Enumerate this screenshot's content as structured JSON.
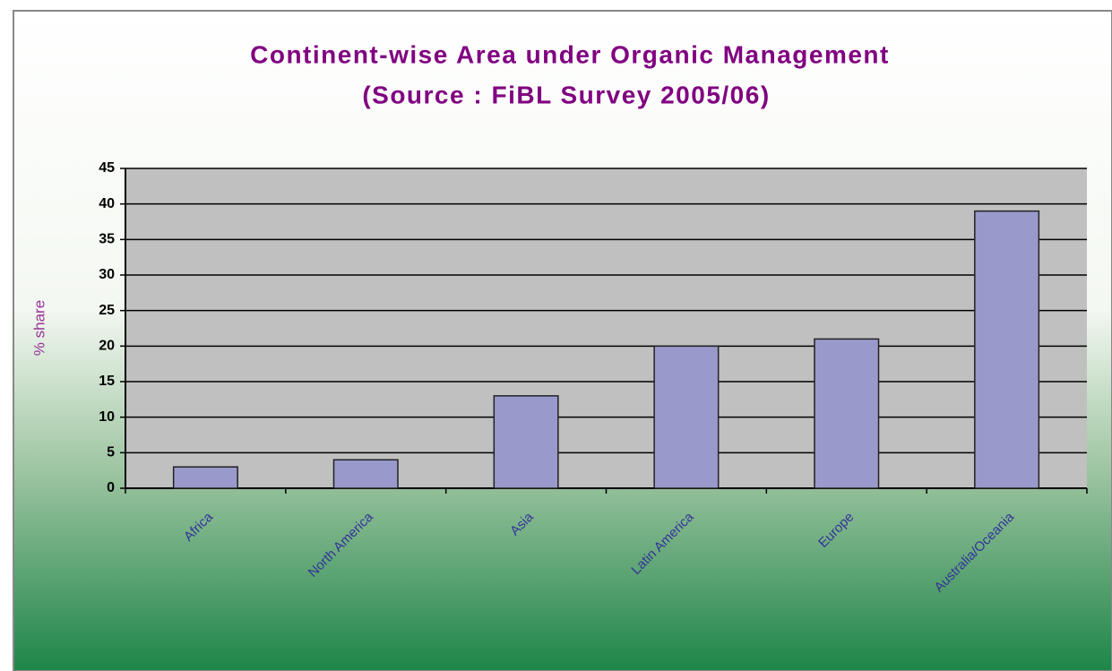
{
  "chart_data": {
    "type": "bar",
    "title": "Continent-wise Area under Organic Management",
    "subtitle": "(Source : FiBL Survey 2005/06)",
    "y_label": "% share",
    "categories": [
      "Africa",
      "North America",
      "Asia",
      "Latin America",
      "Europe",
      "Australia/Oceania"
    ],
    "values": [
      3,
      4,
      13,
      20,
      21,
      39
    ],
    "color": "#9999cc",
    "ylim": [
      0,
      45
    ],
    "yticks": [
      0,
      5,
      10,
      15,
      20,
      25,
      30,
      35,
      40,
      45
    ],
    "grid": true
  }
}
